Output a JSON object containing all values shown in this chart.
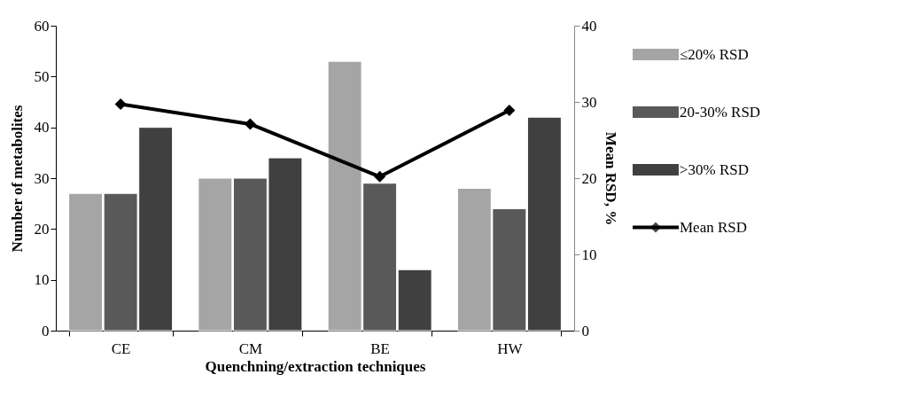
{
  "chart_data": {
    "type": "bar",
    "xlabel": "Quenchning/extraction techniques",
    "ylabel": "Number of metabolites",
    "y2label": "Mean RSD, %",
    "categories": [
      "CE",
      "CM",
      "BE",
      "HW"
    ],
    "series": [
      {
        "name": "≤20% RSD",
        "color": "#a5a5a5",
        "values": [
          27,
          30,
          53,
          28
        ]
      },
      {
        "name": "20-30% RSD",
        "color": "#595959",
        "values": [
          27,
          30,
          29,
          24
        ]
      },
      {
        "name": ">30% RSD",
        "color": "#404040",
        "values": [
          40,
          34,
          12,
          42
        ]
      },
      {
        "name": "Mean RSD",
        "type": "line",
        "axis": "y2",
        "color": "#000000",
        "marker": "diamond",
        "values": [
          29.7,
          27.1,
          20.2,
          28.9
        ]
      }
    ],
    "ylim": [
      0,
      60
    ],
    "yticks": [
      0,
      10,
      20,
      30,
      40,
      50,
      60
    ],
    "y2lim": [
      0,
      40
    ],
    "y2ticks": [
      0,
      10,
      20,
      30,
      40
    ],
    "legend": "right",
    "grid": false
  }
}
